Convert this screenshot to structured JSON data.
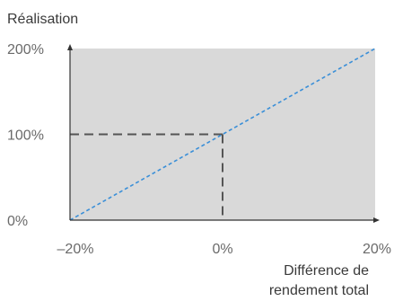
{
  "chart_data": {
    "type": "line",
    "ylabel": "Réalisation",
    "xlabel_lines": [
      "Différence de",
      "rendement total"
    ],
    "x_ticks": [
      "–20%",
      "0%",
      "20%"
    ],
    "y_ticks": [
      "0%",
      "100%",
      "200%"
    ],
    "xlim": [
      -20,
      20
    ],
    "ylim": [
      0,
      200
    ],
    "series": [
      {
        "style": "dotted",
        "color": "#3a8fd8",
        "points": [
          {
            "x": -20,
            "y": 0
          },
          {
            "x": 20,
            "y": 200
          }
        ]
      }
    ],
    "reference_lines": {
      "style": "dashed",
      "color": "#555555",
      "point": {
        "x": 0,
        "y": 100
      }
    },
    "plot_background": "#d9d9d9",
    "grid": false,
    "legend": "none"
  }
}
